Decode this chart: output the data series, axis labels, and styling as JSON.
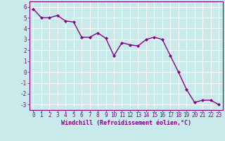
{
  "x": [
    0,
    1,
    2,
    3,
    4,
    5,
    6,
    7,
    8,
    9,
    10,
    11,
    12,
    13,
    14,
    15,
    16,
    17,
    18,
    19,
    20,
    21,
    22,
    23
  ],
  "y": [
    5.8,
    5.0,
    5.0,
    5.2,
    4.7,
    4.6,
    3.2,
    3.2,
    3.6,
    3.1,
    1.5,
    2.7,
    2.5,
    2.4,
    3.0,
    3.2,
    3.0,
    1.5,
    0.0,
    -1.6,
    -2.8,
    -2.6,
    -2.6,
    -3.0
  ],
  "line_color": "#880088",
  "marker": "D",
  "marker_size": 2.0,
  "bg_color": "#c8eaea",
  "grid_color": "#ffffff",
  "xlabel": "Windchill (Refroidissement éolien,°C)",
  "xlim": [
    -0.5,
    23.5
  ],
  "ylim": [
    -3.5,
    6.5
  ],
  "yticks": [
    -3,
    -2,
    -1,
    0,
    1,
    2,
    3,
    4,
    5,
    6
  ],
  "xticks": [
    0,
    1,
    2,
    3,
    4,
    5,
    6,
    7,
    8,
    9,
    10,
    11,
    12,
    13,
    14,
    15,
    16,
    17,
    18,
    19,
    20,
    21,
    22,
    23
  ],
  "tick_fontsize": 5.5,
  "xlabel_fontsize": 6.0,
  "line_width": 1.0,
  "spine_color": "#800080"
}
